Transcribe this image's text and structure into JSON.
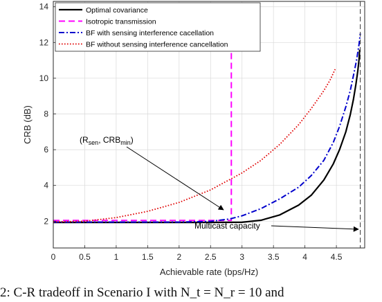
{
  "chart_data": {
    "type": "line",
    "title": "",
    "xlabel": "Achievable rate (bps/Hz)",
    "ylabel": "CRB (dB)",
    "xlim": [
      0,
      4.95
    ],
    "ylim": [
      0.5,
      14.3
    ],
    "xticks": [
      0,
      0.5,
      1,
      1.5,
      2,
      2.5,
      3,
      3.5,
      4,
      4.5
    ],
    "xtick_labels": [
      "0",
      "0.5",
      "1",
      "1.5",
      "2",
      "2.5",
      "3",
      "3.5",
      "4",
      "4.5"
    ],
    "yticks": [
      2,
      4,
      6,
      8,
      10,
      12,
      14
    ],
    "ytick_labels": [
      "2",
      "4",
      "6",
      "8",
      "10",
      "12",
      "14"
    ],
    "grid": true,
    "legend_position": "top-right",
    "series": [
      {
        "name": "Optimal covariance",
        "color": "#000000",
        "style": "solid",
        "x": [
          0,
          0.5,
          1,
          1.5,
          2,
          2.5,
          3,
          3.3,
          3.6,
          3.9,
          4.1,
          4.3,
          4.45,
          4.55,
          4.65,
          4.72,
          4.77,
          4.81,
          4.84,
          4.86,
          4.87
        ],
        "y": [
          1.93,
          1.93,
          1.93,
          1.93,
          1.93,
          1.93,
          1.94,
          2.05,
          2.35,
          2.9,
          3.45,
          4.3,
          5.2,
          6.0,
          7.0,
          7.95,
          8.8,
          9.65,
          10.4,
          11.05,
          11.6
        ]
      },
      {
        "name": "Isotropic transmission",
        "color": "#ff00ff",
        "style": "dashed",
        "x": [
          0,
          0.5,
          1,
          1.5,
          2,
          2.5,
          2.83,
          2.83
        ],
        "y": [
          2.04,
          2.04,
          2.04,
          2.04,
          2.04,
          2.04,
          2.04,
          12.15
        ]
      },
      {
        "name": "BF with sensing interference cacellation",
        "color": "#0000cc",
        "style": "dashdot",
        "x": [
          0,
          0.5,
          1,
          1.5,
          2,
          2.5,
          2.8,
          3.0,
          3.3,
          3.6,
          3.9,
          4.1,
          4.3,
          4.45,
          4.55,
          4.65,
          4.72,
          4.78,
          4.82,
          4.86,
          4.88
        ],
        "y": [
          1.95,
          1.95,
          1.95,
          1.95,
          1.95,
          1.99,
          2.12,
          2.3,
          2.7,
          3.25,
          3.9,
          4.55,
          5.4,
          6.4,
          7.3,
          8.4,
          9.3,
          10.3,
          11.0,
          11.9,
          12.5
        ]
      },
      {
        "name": "BF without sensing interference cancellation",
        "color": "#e00000",
        "style": "dotted",
        "x": [
          0,
          0.5,
          1,
          1.5,
          2,
          2.5,
          3,
          3.3,
          3.6,
          3.9,
          4.1,
          4.3,
          4.4,
          4.48
        ],
        "y": [
          1.96,
          2.0,
          2.2,
          2.55,
          3.05,
          3.75,
          4.7,
          5.4,
          6.3,
          7.4,
          8.3,
          9.3,
          9.9,
          10.5
        ]
      }
    ],
    "vlines": [
      {
        "x": 4.88,
        "color": "#333333",
        "style": "dashed"
      }
    ],
    "annotations": [
      {
        "name": "rsen-crbmin",
        "text": "(R",
        "sub1": "sen",
        "mid": ", CRB",
        "sub2": "min",
        "end": ")",
        "point": [
          2.83,
          2.0
        ]
      },
      {
        "name": "multicast-capacity",
        "text": "Multicast capacity",
        "point": [
          4.88,
          1.6
        ]
      }
    ]
  },
  "caption": {
    "text": "2: C-R tradeoff in Scenario I with N_t = N_r = 10 and"
  }
}
